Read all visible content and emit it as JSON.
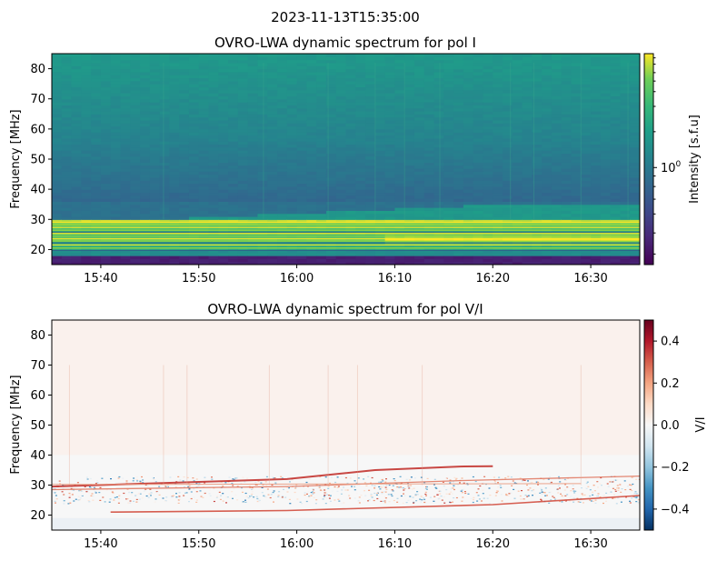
{
  "figure": {
    "suptitle": "2023-11-13T15:35:00"
  },
  "chart_data": [
    {
      "type": "heatmap",
      "title": "OVRO-LWA dynamic spectrum for pol I",
      "xlabel": "",
      "ylabel": "Frequency [MHz]",
      "x_ticks": [
        "15:40",
        "15:50",
        "16:00",
        "16:10",
        "16:20",
        "16:30"
      ],
      "x_range": [
        "15:35",
        "16:35"
      ],
      "y_ticks": [
        20,
        30,
        40,
        50,
        60,
        70,
        80
      ],
      "ylim": [
        15,
        85
      ],
      "colormap": "viridis",
      "colorbar": {
        "label": "Intensity [s.f.u]",
        "scale": "log",
        "ticks": [
          "10^0"
        ],
        "tick_values": [
          1.0
        ]
      },
      "features": {
        "background_upper_band": "teal, ~0.9 relative intensity",
        "background_mid_band": "dark blue ~35-60 MHz",
        "bright_lanes_MHz": [
          20.5,
          21.5,
          22.8,
          23.6,
          24.4,
          25.3,
          26.4,
          27.3,
          28.2,
          29.0
        ],
        "drifting_emission": "slow rising lane from ~29 MHz at 15:35 to ~35 MHz at 16:20",
        "low_band_cut_MHz": 18
      }
    },
    {
      "type": "heatmap",
      "title": "OVRO-LWA dynamic spectrum for pol V/I",
      "xlabel": "",
      "ylabel": "Frequency [MHz]",
      "x_ticks": [
        "15:40",
        "15:50",
        "16:00",
        "16:10",
        "16:20",
        "16:30"
      ],
      "x_range": [
        "15:35",
        "16:35"
      ],
      "y_ticks": [
        20,
        30,
        40,
        50,
        60,
        70,
        80
      ],
      "ylim": [
        15,
        85
      ],
      "colormap": "RdBu_r",
      "colorbar": {
        "label": "V/I",
        "ticks": [
          "0.4",
          "0.2",
          "0.0",
          "−0.2",
          "−0.4"
        ],
        "tick_values": [
          0.4,
          0.2,
          0.0,
          -0.2,
          -0.4
        ],
        "vlim": [
          -0.5,
          0.5
        ]
      },
      "features": {
        "drifting_emission": "red lanes drifting from ~29 MHz to ~36 MHz, and lower lane ~21-26 MHz",
        "noisy_band_MHz": [
          24,
          33
        ]
      }
    }
  ]
}
